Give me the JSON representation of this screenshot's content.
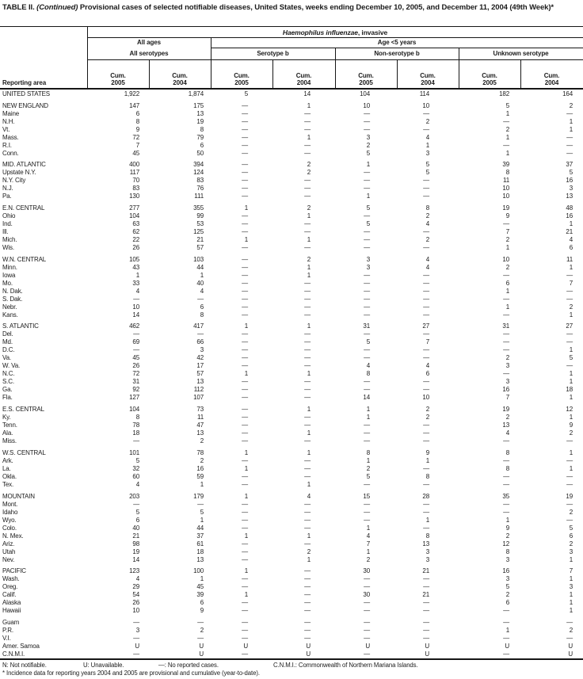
{
  "title": {
    "part1": "TABLE II.",
    "part2": "(Continued)",
    "part3": "Provisional cases of selected notifiable diseases, United States, weeks ending December 10, 2005, and December 11, 2004 (49th Week)*"
  },
  "header": {
    "reporting_area": "Reporting area",
    "disease_italic": "Haemophilus influenzae",
    "disease_rest": ", invasive",
    "group_all_ages": "All ages",
    "group_age_under5": "Age <5 years",
    "subgroups": [
      "All serotypes",
      "Serotype b",
      "Non-serotype b",
      "Unknown serotype"
    ],
    "col_headers": [
      {
        "line1": "Cum.",
        "line2": "2005"
      },
      {
        "line1": "Cum.",
        "line2": "2004"
      },
      {
        "line1": "Cum.",
        "line2": "2005"
      },
      {
        "line1": "Cum.",
        "line2": "2004"
      },
      {
        "line1": "Cum.",
        "line2": "2005"
      },
      {
        "line1": "Cum.",
        "line2": "2004"
      },
      {
        "line1": "Cum.",
        "line2": "2005"
      },
      {
        "line1": "Cum.",
        "line2": "2004"
      }
    ]
  },
  "rows": [
    {
      "label": "UNITED STATES",
      "gap": false,
      "values": [
        "1,922",
        "1,874",
        "5",
        "14",
        "104",
        "114",
        "182",
        "164"
      ]
    },
    {
      "label": "NEW ENGLAND",
      "gap": true,
      "values": [
        "147",
        "175",
        "—",
        "1",
        "10",
        "10",
        "5",
        "2"
      ]
    },
    {
      "label": "Maine",
      "gap": false,
      "values": [
        "6",
        "13",
        "—",
        "—",
        "—",
        "—",
        "1",
        "—"
      ]
    },
    {
      "label": "N.H.",
      "gap": false,
      "values": [
        "8",
        "19",
        "—",
        "—",
        "—",
        "2",
        "—",
        "1"
      ]
    },
    {
      "label": "Vt.",
      "gap": false,
      "values": [
        "9",
        "8",
        "—",
        "—",
        "—",
        "—",
        "2",
        "1"
      ]
    },
    {
      "label": "Mass.",
      "gap": false,
      "values": [
        "72",
        "79",
        "—",
        "1",
        "3",
        "4",
        "1",
        "—"
      ]
    },
    {
      "label": "R.I.",
      "gap": false,
      "values": [
        "7",
        "6",
        "—",
        "—",
        "2",
        "1",
        "—",
        "—"
      ]
    },
    {
      "label": "Conn.",
      "gap": false,
      "values": [
        "45",
        "50",
        "—",
        "—",
        "5",
        "3",
        "1",
        "—"
      ]
    },
    {
      "label": "MID. ATLANTIC",
      "gap": true,
      "values": [
        "400",
        "394",
        "—",
        "2",
        "1",
        "5",
        "39",
        "37"
      ]
    },
    {
      "label": "Upstate N.Y.",
      "gap": false,
      "values": [
        "117",
        "124",
        "—",
        "2",
        "—",
        "5",
        "8",
        "5"
      ]
    },
    {
      "label": "N.Y. City",
      "gap": false,
      "values": [
        "70",
        "83",
        "—",
        "—",
        "—",
        "—",
        "11",
        "16"
      ]
    },
    {
      "label": "N.J.",
      "gap": false,
      "values": [
        "83",
        "76",
        "—",
        "—",
        "—",
        "—",
        "10",
        "3"
      ]
    },
    {
      "label": "Pa.",
      "gap": false,
      "values": [
        "130",
        "111",
        "—",
        "—",
        "1",
        "—",
        "10",
        "13"
      ]
    },
    {
      "label": "E.N. CENTRAL",
      "gap": true,
      "values": [
        "277",
        "355",
        "1",
        "2",
        "5",
        "8",
        "19",
        "48"
      ]
    },
    {
      "label": "Ohio",
      "gap": false,
      "values": [
        "104",
        "99",
        "—",
        "1",
        "—",
        "2",
        "9",
        "16"
      ]
    },
    {
      "label": "Ind.",
      "gap": false,
      "values": [
        "63",
        "53",
        "—",
        "—",
        "5",
        "4",
        "—",
        "1"
      ]
    },
    {
      "label": "Ill.",
      "gap": false,
      "values": [
        "62",
        "125",
        "—",
        "—",
        "—",
        "—",
        "7",
        "21"
      ]
    },
    {
      "label": "Mich.",
      "gap": false,
      "values": [
        "22",
        "21",
        "1",
        "1",
        "—",
        "2",
        "2",
        "4"
      ]
    },
    {
      "label": "Wis.",
      "gap": false,
      "values": [
        "26",
        "57",
        "—",
        "—",
        "—",
        "—",
        "1",
        "6"
      ]
    },
    {
      "label": "W.N. CENTRAL",
      "gap": true,
      "values": [
        "105",
        "103",
        "—",
        "2",
        "3",
        "4",
        "10",
        "11"
      ]
    },
    {
      "label": "Minn.",
      "gap": false,
      "values": [
        "43",
        "44",
        "—",
        "1",
        "3",
        "4",
        "2",
        "1"
      ]
    },
    {
      "label": "Iowa",
      "gap": false,
      "values": [
        "1",
        "1",
        "—",
        "1",
        "—",
        "—",
        "—",
        "—"
      ]
    },
    {
      "label": "Mo.",
      "gap": false,
      "values": [
        "33",
        "40",
        "—",
        "—",
        "—",
        "—",
        "6",
        "7"
      ]
    },
    {
      "label": "N. Dak.",
      "gap": false,
      "values": [
        "4",
        "4",
        "—",
        "—",
        "—",
        "—",
        "1",
        "—"
      ]
    },
    {
      "label": "S. Dak.",
      "gap": false,
      "values": [
        "—",
        "—",
        "—",
        "—",
        "—",
        "—",
        "—",
        "—"
      ]
    },
    {
      "label": "Nebr.",
      "gap": false,
      "values": [
        "10",
        "6",
        "—",
        "—",
        "—",
        "—",
        "1",
        "2"
      ]
    },
    {
      "label": "Kans.",
      "gap": false,
      "values": [
        "14",
        "8",
        "—",
        "—",
        "—",
        "—",
        "—",
        "1"
      ]
    },
    {
      "label": "S. ATLANTIC",
      "gap": true,
      "values": [
        "462",
        "417",
        "1",
        "1",
        "31",
        "27",
        "31",
        "27"
      ]
    },
    {
      "label": "Del.",
      "gap": false,
      "values": [
        "—",
        "—",
        "—",
        "—",
        "—",
        "—",
        "—",
        "—"
      ]
    },
    {
      "label": "Md.",
      "gap": false,
      "values": [
        "69",
        "66",
        "—",
        "—",
        "5",
        "7",
        "—",
        "—"
      ]
    },
    {
      "label": "D.C.",
      "gap": false,
      "values": [
        "—",
        "3",
        "—",
        "—",
        "—",
        "—",
        "—",
        "1"
      ]
    },
    {
      "label": "Va.",
      "gap": false,
      "values": [
        "45",
        "42",
        "—",
        "—",
        "—",
        "—",
        "2",
        "5"
      ]
    },
    {
      "label": "W. Va.",
      "gap": false,
      "values": [
        "26",
        "17",
        "—",
        "—",
        "4",
        "4",
        "3",
        "—"
      ]
    },
    {
      "label": "N.C.",
      "gap": false,
      "values": [
        "72",
        "57",
        "1",
        "1",
        "8",
        "6",
        "—",
        "1"
      ]
    },
    {
      "label": "S.C.",
      "gap": false,
      "values": [
        "31",
        "13",
        "—",
        "—",
        "—",
        "—",
        "3",
        "1"
      ]
    },
    {
      "label": "Ga.",
      "gap": false,
      "values": [
        "92",
        "112",
        "—",
        "—",
        "—",
        "—",
        "16",
        "18"
      ]
    },
    {
      "label": "Fla.",
      "gap": false,
      "values": [
        "127",
        "107",
        "—",
        "—",
        "14",
        "10",
        "7",
        "1"
      ]
    },
    {
      "label": "E.S. CENTRAL",
      "gap": true,
      "values": [
        "104",
        "73",
        "—",
        "1",
        "1",
        "2",
        "19",
        "12"
      ]
    },
    {
      "label": "Ky.",
      "gap": false,
      "values": [
        "8",
        "11",
        "—",
        "—",
        "1",
        "2",
        "2",
        "1"
      ]
    },
    {
      "label": "Tenn.",
      "gap": false,
      "values": [
        "78",
        "47",
        "—",
        "—",
        "—",
        "—",
        "13",
        "9"
      ]
    },
    {
      "label": "Ala.",
      "gap": false,
      "values": [
        "18",
        "13",
        "—",
        "1",
        "—",
        "—",
        "4",
        "2"
      ]
    },
    {
      "label": "Miss.",
      "gap": false,
      "values": [
        "—",
        "2",
        "—",
        "—",
        "—",
        "—",
        "—",
        "—"
      ]
    },
    {
      "label": "W.S. CENTRAL",
      "gap": true,
      "values": [
        "101",
        "78",
        "1",
        "1",
        "8",
        "9",
        "8",
        "1"
      ]
    },
    {
      "label": "Ark.",
      "gap": false,
      "values": [
        "5",
        "2",
        "—",
        "—",
        "1",
        "1",
        "—",
        "—"
      ]
    },
    {
      "label": "La.",
      "gap": false,
      "values": [
        "32",
        "16",
        "1",
        "—",
        "2",
        "—",
        "8",
        "1"
      ]
    },
    {
      "label": "Okla.",
      "gap": false,
      "values": [
        "60",
        "59",
        "—",
        "—",
        "5",
        "8",
        "—",
        "—"
      ]
    },
    {
      "label": "Tex.",
      "gap": false,
      "values": [
        "4",
        "1",
        "—",
        "1",
        "—",
        "—",
        "—",
        "—"
      ]
    },
    {
      "label": "MOUNTAIN",
      "gap": true,
      "values": [
        "203",
        "179",
        "1",
        "4",
        "15",
        "28",
        "35",
        "19"
      ]
    },
    {
      "label": "Mont.",
      "gap": false,
      "values": [
        "—",
        "—",
        "—",
        "—",
        "—",
        "—",
        "—",
        "—"
      ]
    },
    {
      "label": "Idaho",
      "gap": false,
      "values": [
        "5",
        "5",
        "—",
        "—",
        "—",
        "—",
        "—",
        "2"
      ]
    },
    {
      "label": "Wyo.",
      "gap": false,
      "values": [
        "6",
        "1",
        "—",
        "—",
        "—",
        "1",
        "1",
        "—"
      ]
    },
    {
      "label": "Colo.",
      "gap": false,
      "values": [
        "40",
        "44",
        "—",
        "—",
        "1",
        "—",
        "9",
        "5"
      ]
    },
    {
      "label": "N. Mex.",
      "gap": false,
      "values": [
        "21",
        "37",
        "1",
        "1",
        "4",
        "8",
        "2",
        "6"
      ]
    },
    {
      "label": "Ariz.",
      "gap": false,
      "values": [
        "98",
        "61",
        "—",
        "—",
        "7",
        "13",
        "12",
        "2"
      ]
    },
    {
      "label": "Utah",
      "gap": false,
      "values": [
        "19",
        "18",
        "—",
        "2",
        "1",
        "3",
        "8",
        "3"
      ]
    },
    {
      "label": "Nev.",
      "gap": false,
      "values": [
        "14",
        "13",
        "—",
        "1",
        "2",
        "3",
        "3",
        "1"
      ]
    },
    {
      "label": "PACIFIC",
      "gap": true,
      "values": [
        "123",
        "100",
        "1",
        "—",
        "30",
        "21",
        "16",
        "7"
      ]
    },
    {
      "label": "Wash.",
      "gap": false,
      "values": [
        "4",
        "1",
        "—",
        "—",
        "—",
        "—",
        "3",
        "1"
      ]
    },
    {
      "label": "Oreg.",
      "gap": false,
      "values": [
        "29",
        "45",
        "—",
        "—",
        "—",
        "—",
        "5",
        "3"
      ]
    },
    {
      "label": "Calif.",
      "gap": false,
      "values": [
        "54",
        "39",
        "1",
        "—",
        "30",
        "21",
        "2",
        "1"
      ]
    },
    {
      "label": "Alaska",
      "gap": false,
      "values": [
        "26",
        "6",
        "—",
        "—",
        "—",
        "—",
        "6",
        "1"
      ]
    },
    {
      "label": "Hawaii",
      "gap": false,
      "values": [
        "10",
        "9",
        "—",
        "—",
        "—",
        "—",
        "—",
        "1"
      ]
    },
    {
      "label": "Guam",
      "gap": true,
      "values": [
        "—",
        "—",
        "—",
        "—",
        "—",
        "—",
        "—",
        "—"
      ]
    },
    {
      "label": "P.R.",
      "gap": false,
      "values": [
        "3",
        "2",
        "—",
        "—",
        "—",
        "—",
        "1",
        "2"
      ]
    },
    {
      "label": "V.I.",
      "gap": false,
      "values": [
        "—",
        "—",
        "—",
        "—",
        "—",
        "—",
        "—",
        "—"
      ]
    },
    {
      "label": "Amer. Samoa",
      "gap": false,
      "values": [
        "U",
        "U",
        "U",
        "U",
        "U",
        "U",
        "U",
        "U"
      ]
    },
    {
      "label": "C.N.M.I.",
      "gap": false,
      "values": [
        "—",
        "U",
        "—",
        "U",
        "—",
        "U",
        "—",
        "U"
      ]
    }
  ],
  "footnotes": {
    "legend": [
      "N: Not notifiable.",
      "U: Unavailable.",
      "—: No reported cases.",
      "C.N.M.I.: Commonwealth of Northern Mariana Islands."
    ],
    "note": "* Incidence data for reporting years 2004 and 2005 are provisional and cumulative (year-to-date)."
  }
}
